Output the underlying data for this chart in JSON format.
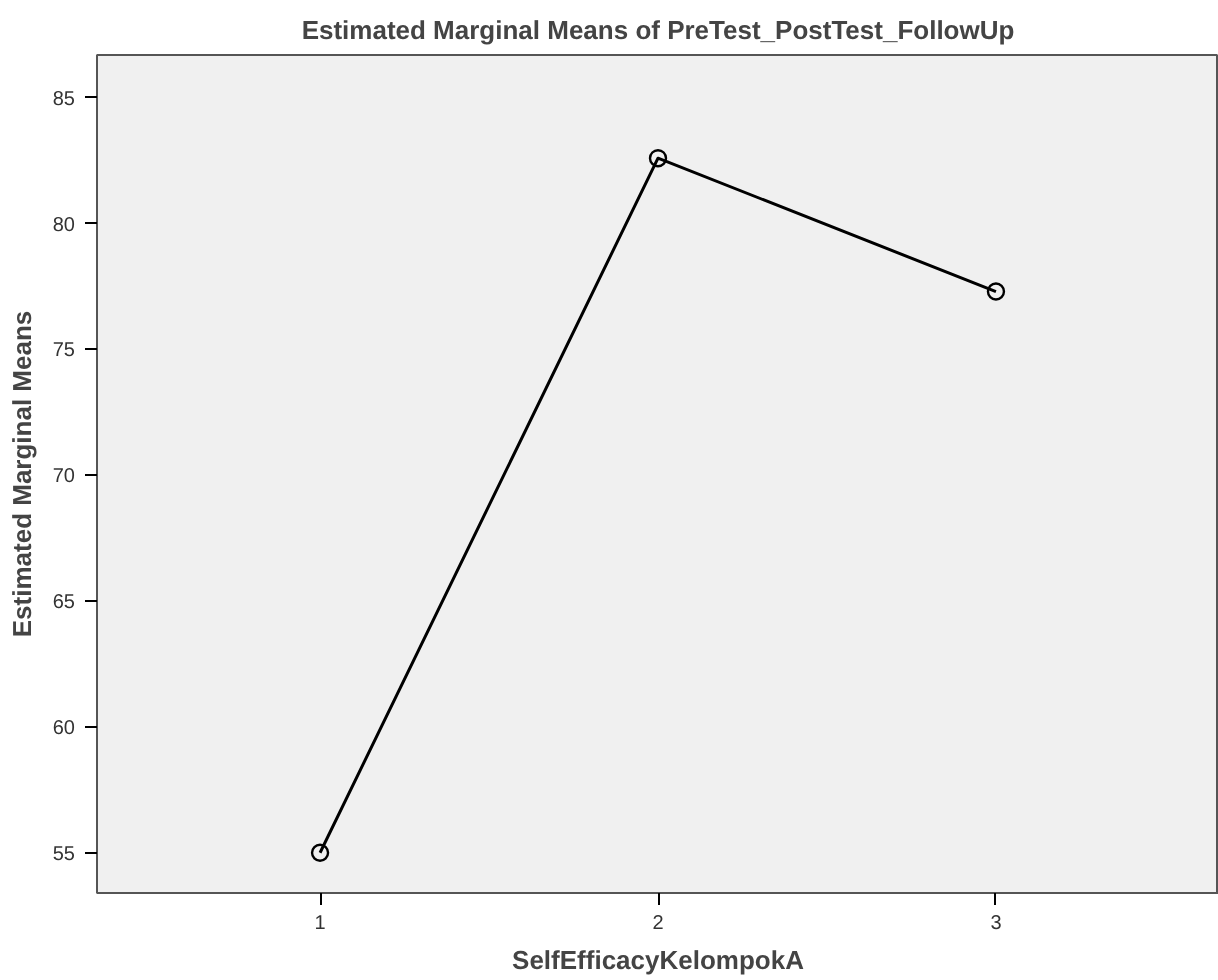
{
  "chart_data": {
    "type": "line",
    "title": "Estimated Marginal Means of PreTest_PostTest_FollowUp",
    "xlabel": "SelfEfficacyKelompokA",
    "ylabel": "Estimated Marginal Means",
    "categories": [
      "1",
      "2",
      "3"
    ],
    "series": [
      {
        "color": "#000000",
        "values": [
          55.0,
          82.6,
          77.3
        ]
      }
    ],
    "ylim": [
      53.4,
      86.7
    ],
    "yticks": [
      55,
      60,
      65,
      70,
      75,
      80,
      85
    ],
    "grid": false,
    "marker": "circle",
    "line_style": "solid"
  }
}
